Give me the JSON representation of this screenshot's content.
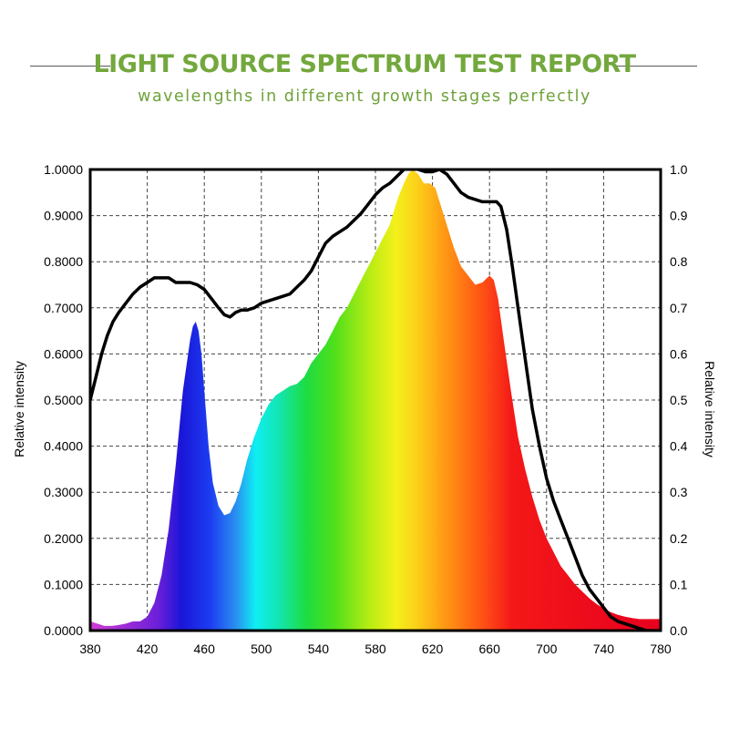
{
  "header": {
    "title": "LIGHT SOURCE SPECTRUM TEST REPORT",
    "subtitle": "wavelengths in different growth stages perfectly"
  },
  "colors": {
    "title_green": "#73a83d",
    "curve_black": "#000000",
    "grid": "#444444"
  },
  "chart_data": {
    "type": "area",
    "title": "LIGHT SOURCE SPECTRUM TEST REPORT",
    "subtitle": "wavelengths in different growth stages perfectly",
    "xlabel": "",
    "ylabel": "Relative intensity",
    "y2label": "Relative intensity",
    "xlim": [
      380,
      780
    ],
    "ylim": [
      0,
      1
    ],
    "y2lim": [
      0,
      1
    ],
    "grid": true,
    "x_ticks": [
      "380",
      "420",
      "460",
      "500",
      "540",
      "580",
      "620",
      "660",
      "700",
      "740",
      "780"
    ],
    "y_ticks": [
      "0.0000",
      "0.1000",
      "0.2000",
      "0.3000",
      "0.4000",
      "0.5000",
      "0.6000",
      "0.7000",
      "0.8000",
      "0.9000",
      "1.0000"
    ],
    "y2_ticks": [
      "0.0",
      "0.1",
      "0.2",
      "0.3",
      "0.4",
      "0.5",
      "0.6",
      "0.7",
      "0.8",
      "0.9",
      "1.0"
    ],
    "series": [
      {
        "kind": "filled-spectrum",
        "x": [
          380,
          385,
          390,
          395,
          400,
          405,
          410,
          415,
          420,
          425,
          430,
          435,
          440,
          445,
          450,
          452,
          454,
          456,
          458,
          460,
          463,
          466,
          470,
          474,
          478,
          482,
          486,
          490,
          495,
          500,
          505,
          510,
          515,
          520,
          525,
          530,
          535,
          540,
          545,
          550,
          555,
          560,
          565,
          570,
          575,
          580,
          585,
          590,
          593,
          596,
          600,
          603,
          606,
          610,
          614,
          618,
          622,
          626,
          630,
          635,
          640,
          645,
          650,
          655,
          660,
          663,
          666,
          670,
          675,
          680,
          685,
          690,
          695,
          700,
          705,
          710,
          715,
          720,
          725,
          730,
          735,
          740,
          745,
          750,
          755,
          760,
          765,
          770,
          775,
          780
        ],
        "y": [
          0.02,
          0.015,
          0.01,
          0.01,
          0.012,
          0.015,
          0.02,
          0.02,
          0.03,
          0.06,
          0.12,
          0.22,
          0.36,
          0.52,
          0.63,
          0.66,
          0.67,
          0.65,
          0.6,
          0.52,
          0.4,
          0.32,
          0.27,
          0.25,
          0.255,
          0.28,
          0.32,
          0.37,
          0.42,
          0.46,
          0.49,
          0.51,
          0.52,
          0.53,
          0.535,
          0.55,
          0.58,
          0.6,
          0.62,
          0.65,
          0.68,
          0.7,
          0.73,
          0.76,
          0.79,
          0.82,
          0.85,
          0.88,
          0.91,
          0.94,
          0.97,
          0.99,
          1.0,
          0.99,
          0.97,
          0.97,
          0.96,
          0.92,
          0.88,
          0.83,
          0.79,
          0.77,
          0.75,
          0.755,
          0.77,
          0.76,
          0.72,
          0.63,
          0.52,
          0.42,
          0.35,
          0.29,
          0.24,
          0.2,
          0.17,
          0.14,
          0.12,
          0.1,
          0.085,
          0.07,
          0.058,
          0.048,
          0.04,
          0.034,
          0.03,
          0.027,
          0.025,
          0.025,
          0.025,
          0.025
        ]
      },
      {
        "kind": "line",
        "axis": "right",
        "x": [
          380,
          384,
          388,
          392,
          396,
          400,
          405,
          410,
          415,
          420,
          425,
          430,
          435,
          440,
          445,
          450,
          455,
          460,
          465,
          470,
          474,
          478,
          482,
          486,
          490,
          495,
          500,
          505,
          510,
          515,
          520,
          525,
          530,
          535,
          540,
          545,
          550,
          555,
          560,
          565,
          570,
          575,
          580,
          585,
          590,
          595,
          600,
          605,
          610,
          615,
          620,
          625,
          630,
          635,
          640,
          645,
          650,
          655,
          660,
          665,
          668,
          672,
          676,
          680,
          685,
          690,
          695,
          700,
          705,
          710,
          715,
          720,
          725,
          730,
          735,
          740,
          745,
          750,
          755,
          760,
          765,
          770,
          775,
          780
        ],
        "y": [
          0.5,
          0.55,
          0.6,
          0.64,
          0.67,
          0.69,
          0.71,
          0.73,
          0.745,
          0.755,
          0.765,
          0.765,
          0.765,
          0.755,
          0.755,
          0.755,
          0.75,
          0.74,
          0.72,
          0.7,
          0.685,
          0.68,
          0.69,
          0.695,
          0.695,
          0.7,
          0.71,
          0.715,
          0.72,
          0.725,
          0.73,
          0.745,
          0.76,
          0.78,
          0.81,
          0.84,
          0.855,
          0.865,
          0.875,
          0.89,
          0.905,
          0.925,
          0.945,
          0.96,
          0.97,
          0.985,
          1.0,
          1.005,
          1.0,
          0.995,
          0.995,
          1.0,
          0.99,
          0.97,
          0.95,
          0.94,
          0.935,
          0.93,
          0.93,
          0.93,
          0.92,
          0.87,
          0.79,
          0.7,
          0.59,
          0.48,
          0.4,
          0.33,
          0.28,
          0.24,
          0.2,
          0.16,
          0.12,
          0.09,
          0.07,
          0.05,
          0.03,
          0.02,
          0.015,
          0.01,
          0.005,
          0.0,
          0.0,
          0.0
        ]
      }
    ]
  }
}
